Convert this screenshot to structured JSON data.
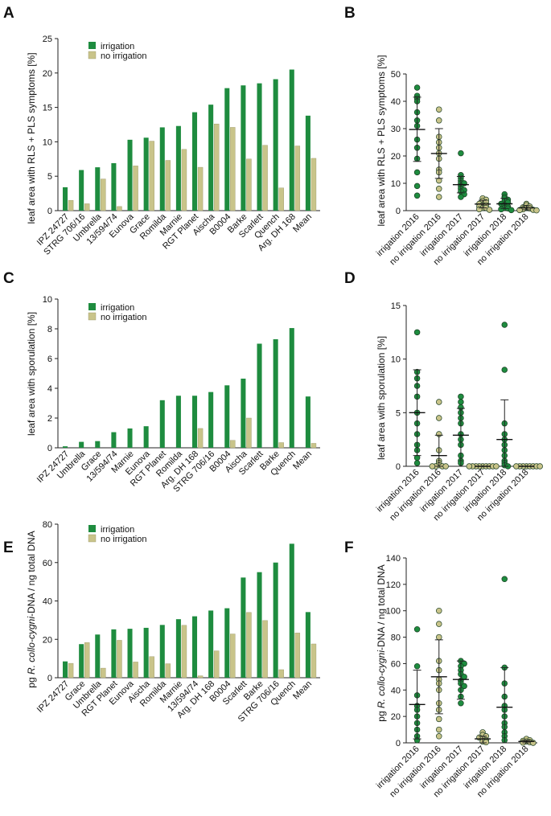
{
  "colors": {
    "irrigation": "#1e8c3f",
    "no_irrigation": "#c9c48a",
    "axis": "#222222"
  },
  "chart_data": [
    {
      "panel": "A",
      "type": "bar",
      "ylabel": "leaf area with RLS + PLS symptoms [%]",
      "ylim": [
        0,
        25
      ],
      "yticks": [
        0,
        5,
        10,
        15,
        20,
        25
      ],
      "legend": [
        "irrigation",
        "no irrigation"
      ],
      "categories": [
        "IPZ 24727",
        "STRG 706/16",
        "Umbrella",
        "13/594/74",
        "Eunova",
        "Grace",
        "Romilda",
        "Marnie",
        "RGT Planet",
        "Aischa",
        "B0004",
        "Barke",
        "Scarlett",
        "Quench",
        "Arg. DH 168",
        "Mean"
      ],
      "series": [
        {
          "name": "irrigation",
          "values": [
            3.4,
            5.9,
            6.3,
            6.9,
            10.3,
            10.6,
            12.1,
            12.3,
            14.3,
            15.4,
            17.8,
            18.2,
            18.5,
            19.1,
            20.5,
            13.8
          ]
        },
        {
          "name": "no irrigation",
          "values": [
            1.5,
            1.0,
            4.6,
            0.6,
            6.5,
            10.1,
            7.3,
            8.9,
            6.3,
            12.6,
            12.1,
            7.5,
            9.5,
            3.3,
            9.4,
            7.6
          ]
        }
      ]
    },
    {
      "panel": "B",
      "type": "scatter",
      "ylabel": "leaf area with RLS + PLS symptoms [%]",
      "ylim": [
        0,
        50
      ],
      "yticks": [
        0,
        10,
        20,
        30,
        40,
        50
      ],
      "categories": [
        "irrigation 2016",
        "no irrigation 2016",
        "irrigation 2017",
        "no irrigation 2017",
        "irrigation 2018",
        "no irrigation 2018"
      ],
      "groups": [
        {
          "name": "irrigation 2016",
          "irrigated": true,
          "mean": 29.7,
          "sd": [
            18.0,
            41.5
          ],
          "points": [
            45,
            42,
            41,
            40,
            36,
            33,
            31,
            26,
            23,
            19,
            14,
            9,
            5.5
          ]
        },
        {
          "name": "no irrigation 2016",
          "irrigated": false,
          "mean": 20.9,
          "sd": [
            11.8,
            30.0
          ],
          "points": [
            37,
            33,
            27,
            25,
            23,
            21,
            19,
            15,
            14,
            11,
            8,
            5
          ]
        },
        {
          "name": "irrigation 2017",
          "irrigated": true,
          "mean": 9.5,
          "sd": [
            6.5,
            12.5
          ],
          "points": [
            21,
            13,
            12,
            11,
            10,
            10,
            9,
            8,
            7.5,
            7,
            6,
            5
          ]
        },
        {
          "name": "no irrigation 2017",
          "irrigated": false,
          "mean": 2.4,
          "sd": [
            1.0,
            3.8
          ],
          "points": [
            4.5,
            4,
            3.5,
            3,
            2.5,
            2,
            2,
            1.5,
            1,
            1,
            0.5,
            0.3
          ]
        },
        {
          "name": "irrigation 2018",
          "irrigated": true,
          "mean": 2.5,
          "sd": [
            0.8,
            4.5
          ],
          "points": [
            6,
            5,
            4.5,
            4,
            3.5,
            3,
            2.5,
            2,
            1.5,
            1,
            0.8,
            0.5,
            0.2
          ]
        },
        {
          "name": "no irrigation 2018",
          "irrigated": false,
          "mean": 1.0,
          "sd": [
            0.3,
            1.8
          ],
          "points": [
            2.5,
            2,
            1.5,
            1.2,
            1,
            0.8,
            0.5,
            0.3,
            0.2,
            0.1
          ]
        }
      ]
    },
    {
      "panel": "C",
      "type": "bar",
      "ylabel": "leaf area with sporulation [%]",
      "ylim": [
        0,
        10
      ],
      "yticks": [
        0,
        2,
        4,
        6,
        8,
        10
      ],
      "legend": [
        "irrigation",
        "no irrigation"
      ],
      "categories": [
        "IPZ 24727",
        "Umbrella",
        "Grace",
        "13/594/74",
        "Marnie",
        "Eunova",
        "RGT Planet",
        "Romilda",
        "Arg. DH 168",
        "STRG 706/16",
        "B0004",
        "Aischa",
        "Scarlett",
        "Barke",
        "Quench",
        "Mean"
      ],
      "series": [
        {
          "name": "irrigation",
          "values": [
            0.1,
            0.4,
            0.45,
            1.05,
            1.3,
            1.45,
            3.2,
            3.5,
            3.5,
            3.75,
            4.2,
            4.65,
            7.0,
            7.3,
            8.05,
            3.45
          ]
        },
        {
          "name": "no irrigation",
          "values": [
            0,
            0,
            0,
            0,
            0,
            0,
            0,
            0,
            1.3,
            0,
            0.5,
            2.0,
            0,
            0.35,
            0,
            0.3
          ]
        }
      ]
    },
    {
      "panel": "D",
      "type": "scatter",
      "ylabel": "leaf area with sporulation [%]",
      "ylim": [
        0,
        15
      ],
      "yticks": [
        0,
        5,
        10,
        15
      ],
      "categories": [
        "irrigation 2016",
        "no irrigation 2016",
        "irrigation 2017",
        "no irrigation 2017",
        "irrigation 2018",
        "no irrigation 2018"
      ],
      "groups": [
        {
          "name": "irrigation 2016",
          "irrigated": true,
          "mean": 5.0,
          "sd": [
            1.0,
            9.0
          ],
          "points": [
            12.5,
            8.8,
            8.2,
            7.5,
            6.5,
            5,
            4,
            3,
            2,
            1.5,
            0.8,
            0.3
          ]
        },
        {
          "name": "no irrigation 2016",
          "irrigated": false,
          "mean": 1.0,
          "sd": [
            0,
            2.9
          ],
          "points": [
            6,
            4.5,
            3,
            1.5,
            0.5,
            0.3,
            0.1,
            0,
            0,
            0,
            0
          ]
        },
        {
          "name": "irrigation 2017",
          "irrigated": true,
          "mean": 2.9,
          "sd": [
            0,
            5.4
          ],
          "points": [
            6.5,
            6,
            5.5,
            5,
            4.5,
            4,
            3,
            2.5,
            2,
            1,
            0.5,
            0.3
          ]
        },
        {
          "name": "no irrigation 2017",
          "irrigated": false,
          "mean": 0,
          "sd": [
            0,
            0
          ],
          "points": [
            0,
            0,
            0,
            0,
            0,
            0,
            0,
            0,
            0
          ]
        },
        {
          "name": "irrigation 2018",
          "irrigated": true,
          "mean": 2.5,
          "sd": [
            0,
            6.2
          ],
          "points": [
            13.2,
            9,
            4,
            3,
            2.5,
            2,
            1.5,
            1,
            0.5,
            0.3,
            0.1,
            0
          ]
        },
        {
          "name": "no irrigation 2018",
          "irrigated": false,
          "mean": 0,
          "sd": [
            0,
            0
          ],
          "points": [
            0,
            0,
            0,
            0,
            0,
            0,
            0,
            0
          ]
        }
      ]
    },
    {
      "panel": "E",
      "type": "bar",
      "ylabel": "pg R. collo-cygni-DNA / ng total DNA",
      "ylim": [
        0,
        80
      ],
      "yticks": [
        0,
        20,
        40,
        60,
        80
      ],
      "legend": [
        "irrigation",
        "no irrigation"
      ],
      "categories": [
        "IPZ 24727",
        "Grace",
        "Umbrella",
        "RGT Planet",
        "Eunova",
        "Aischa",
        "Romilda",
        "Marnie",
        "13/594/74",
        "Arg. DH 168",
        "B0004",
        "Scarlett",
        "Barke",
        "STRG 706/16",
        "Quench",
        "Mean"
      ],
      "series": [
        {
          "name": "irrigation",
          "values": [
            8.5,
            17.5,
            22.5,
            25.2,
            25.5,
            26.0,
            27.5,
            30.5,
            32.0,
            35.0,
            36.2,
            52.2,
            55.0,
            60.0,
            69.8,
            34.2
          ]
        },
        {
          "name": "no irrigation",
          "values": [
            7.5,
            18.3,
            5.0,
            19.5,
            8.2,
            11.0,
            7.3,
            27.3,
            1.0,
            14.0,
            22.8,
            34.0,
            29.8,
            4.2,
            23.3,
            17.6
          ]
        }
      ]
    },
    {
      "panel": "F",
      "type": "scatter",
      "ylabel": "pg R. collo-cygni-DNA / ng total DNA",
      "ylim": [
        0,
        140
      ],
      "yticks": [
        0,
        20,
        40,
        60,
        80,
        100,
        120,
        140
      ],
      "categories": [
        "irrigation 2016",
        "no irrigation 2016",
        "irrigation 2017",
        "no irrigation 2017",
        "irrigation 2018",
        "no irrigation 2018"
      ],
      "groups": [
        {
          "name": "irrigation 2016",
          "irrigated": true,
          "mean": 29,
          "sd": [
            3,
            55
          ],
          "points": [
            86,
            58,
            36,
            28,
            25,
            20,
            15,
            10,
            5,
            2
          ]
        },
        {
          "name": "no irrigation 2016",
          "irrigated": false,
          "mean": 50,
          "sd": [
            22,
            78
          ],
          "points": [
            100,
            90,
            80,
            62,
            55,
            48,
            45,
            40,
            30,
            25,
            18,
            10,
            5
          ]
        },
        {
          "name": "irrigation 2017",
          "irrigated": true,
          "mean": 48,
          "sd": [
            33,
            62
          ],
          "points": [
            62,
            60,
            58,
            55,
            52,
            50,
            47,
            45,
            43,
            40,
            35,
            30
          ]
        },
        {
          "name": "no irrigation 2017",
          "irrigated": false,
          "mean": 3,
          "sd": [
            0,
            5
          ],
          "points": [
            8,
            6,
            5,
            4,
            3,
            2,
            1,
            0.5
          ]
        },
        {
          "name": "irrigation 2018",
          "irrigated": true,
          "mean": 27,
          "sd": [
            0,
            57
          ],
          "points": [
            124,
            57,
            45,
            35,
            28,
            25,
            20,
            15,
            12,
            8,
            5,
            2
          ]
        },
        {
          "name": "no irrigation 2018",
          "irrigated": false,
          "mean": 1,
          "sd": [
            0,
            2
          ],
          "points": [
            3,
            2,
            1.5,
            1,
            0.5,
            0.2,
            0
          ]
        }
      ]
    }
  ],
  "panels": [
    {
      "label": "A",
      "ylabel": "leaf area with RLS + PLS symptoms [%]"
    },
    {
      "label": "B",
      "ylabel": "leaf area with RLS + PLS symptoms [%]"
    },
    {
      "label": "C",
      "ylabel": "leaf area with sporulation [%]"
    },
    {
      "label": "D",
      "ylabel": "leaf area with sporulation [%]"
    },
    {
      "label": "E",
      "ylabel_prefix": "pg ",
      "ylabel_italic": "R. collo-cygni",
      "ylabel_suffix": "-DNA / ng total DNA"
    },
    {
      "label": "F",
      "ylabel_prefix": "pg ",
      "ylabel_italic": "R. collo-cygni",
      "ylabel_suffix": "-DNA / ng total DNA"
    }
  ]
}
